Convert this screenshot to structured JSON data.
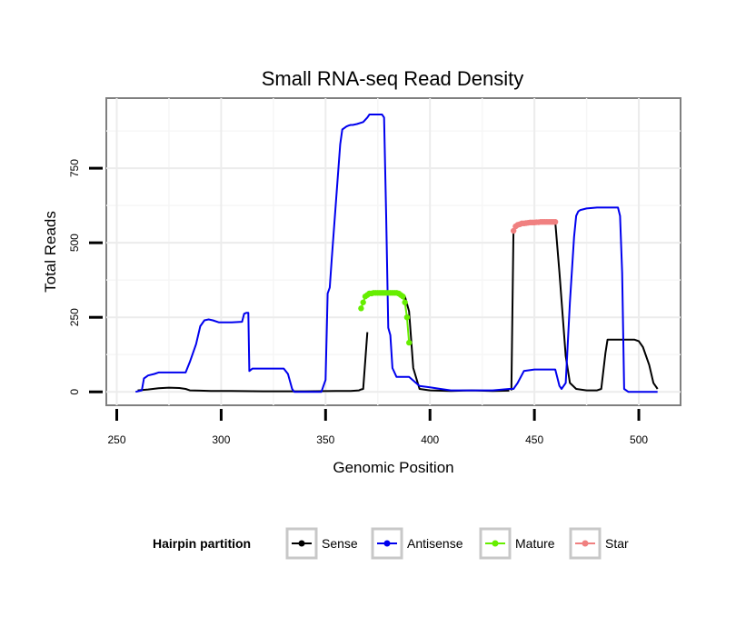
{
  "chart_data": {
    "type": "line",
    "title": "Small RNA-seq Read Density",
    "xlabel": "Genomic Position",
    "ylabel": "Total Reads",
    "xlim": [
      245,
      520
    ],
    "ylim": [
      -45,
      985
    ],
    "x_ticks": [
      250,
      300,
      350,
      400,
      450,
      500
    ],
    "y_ticks": [
      0,
      250,
      500,
      750
    ],
    "grid": true,
    "legend": {
      "title": "Hairpin partition",
      "position": "bottom",
      "entries": [
        "Sense",
        "Antisense",
        "Mature",
        "Star"
      ]
    },
    "series": [
      {
        "name": "Sense",
        "color": "#000000",
        "marker": false,
        "x": [
          260,
          265,
          270,
          275,
          280,
          283,
          285,
          290,
          295,
          300,
          320,
          340,
          355,
          362,
          366,
          367,
          368,
          370
        ],
        "y": [
          5,
          8,
          12,
          14,
          13,
          10,
          5,
          4,
          3,
          3,
          2,
          2,
          3,
          3,
          5,
          8,
          10,
          200
        ]
      },
      {
        "name": "Sense",
        "color": "#000000",
        "marker": false,
        "x": [
          386,
          388,
          390,
          392,
          395,
          400,
          410,
          420,
          430,
          438
        ],
        "y": [
          330,
          320,
          270,
          80,
          10,
          5,
          3,
          5,
          3,
          4
        ]
      },
      {
        "name": "Sense",
        "color": "#000000",
        "marker": false,
        "x": [
          439,
          440
        ],
        "y": [
          5,
          540
        ]
      },
      {
        "name": "Sense",
        "color": "#000000",
        "marker": false,
        "x": [
          460,
          462,
          465,
          467,
          470,
          475,
          480,
          482,
          484,
          485,
          495,
          498,
          500,
          502,
          505,
          507,
          509
        ],
        "y": [
          570,
          400,
          120,
          30,
          10,
          5,
          5,
          10,
          130,
          175,
          175,
          175,
          170,
          150,
          90,
          30,
          10
        ]
      },
      {
        "name": "Antisense",
        "color": "#0000ee",
        "marker": false,
        "x": [
          259,
          262,
          263,
          265,
          268,
          270,
          275,
          280,
          283,
          285,
          288,
          290,
          292,
          294,
          296,
          299,
          300,
          305,
          310,
          311,
          312,
          313,
          313.5,
          315,
          320,
          325,
          330,
          332,
          334,
          335,
          337,
          340,
          345,
          348,
          350,
          351,
          352,
          353,
          355,
          357,
          358,
          360,
          361,
          362,
          363,
          365,
          368,
          370,
          371,
          373,
          375,
          377,
          378,
          379,
          380,
          381,
          382,
          384,
          390,
          395,
          400,
          405,
          410,
          420,
          430,
          438,
          440,
          442,
          445,
          450,
          455,
          460,
          462,
          463,
          465,
          467,
          469,
          470,
          471,
          472,
          475,
          480,
          485,
          490,
          491,
          492,
          493,
          495,
          500,
          505,
          509
        ],
        "y": [
          0,
          5,
          45,
          55,
          60,
          65,
          65,
          65,
          65,
          100,
          160,
          220,
          240,
          243,
          240,
          233,
          233,
          233,
          235,
          262,
          265,
          265,
          70,
          78,
          78,
          78,
          78,
          60,
          10,
          0,
          0,
          0,
          0,
          0,
          40,
          330,
          350,
          450,
          640,
          830,
          880,
          890,
          893,
          895,
          895,
          898,
          905,
          920,
          930,
          930,
          930,
          930,
          920,
          590,
          215,
          190,
          80,
          50,
          50,
          20,
          15,
          10,
          5,
          5,
          5,
          10,
          10,
          30,
          70,
          75,
          75,
          75,
          20,
          10,
          30,
          300,
          520,
          590,
          605,
          610,
          615,
          618,
          618,
          618,
          590,
          400,
          10,
          0,
          0,
          0,
          0
        ]
      },
      {
        "name": "Mature",
        "color": "#66ee00",
        "marker": true,
        "x": [
          367,
          368,
          369,
          370,
          371,
          372,
          373,
          374,
          375,
          376,
          377,
          378,
          379,
          380,
          381,
          382,
          383,
          384,
          385,
          386,
          387,
          388,
          389,
          390
        ],
        "y": [
          280,
          300,
          320,
          325,
          330,
          330,
          332,
          332,
          332,
          332,
          332,
          332,
          332,
          332,
          332,
          332,
          332,
          332,
          330,
          325,
          320,
          300,
          250,
          165
        ]
      },
      {
        "name": "Star",
        "color": "#f08080",
        "marker": true,
        "x": [
          440,
          441,
          442,
          443,
          444,
          445,
          446,
          447,
          448,
          449,
          450,
          451,
          452,
          453,
          454,
          455,
          456,
          457,
          458,
          459,
          460
        ],
        "y": [
          540,
          555,
          560,
          562,
          565,
          565,
          566,
          567,
          568,
          568,
          568,
          569,
          569,
          570,
          570,
          570,
          570,
          570,
          570,
          570,
          570
        ]
      }
    ]
  }
}
